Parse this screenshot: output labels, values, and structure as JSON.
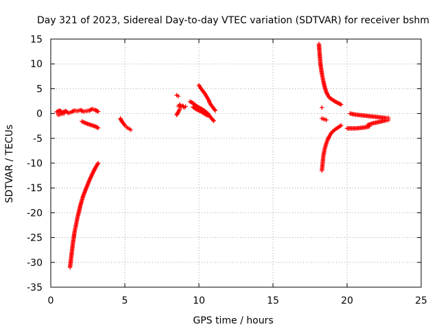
{
  "chart_data": {
    "type": "scatter",
    "title": "Day 321 of 2023, Sidereal Day-to-day VTEC variation (SDTVAR) for receiver bshm",
    "xlabel": "GPS time / hours",
    "ylabel": "SDTVAR / TECUs",
    "xlim": [
      0,
      25
    ],
    "ylim": [
      -35,
      15
    ],
    "xticks": [
      0,
      5,
      10,
      15,
      20,
      25
    ],
    "yticks": [
      -35,
      -30,
      -25,
      -20,
      -15,
      -10,
      -5,
      0,
      5,
      10,
      15
    ],
    "grid": true,
    "legend": "none",
    "marker": "plus",
    "color": "#ff0000",
    "segments": [
      {
        "x": [
          0.4,
          0.6,
          0.8,
          1.0,
          1.2,
          1.4,
          1.6,
          1.8,
          2.0,
          2.2,
          2.4,
          2.6,
          2.8,
          3.0,
          3.2
        ],
        "y": [
          0.3,
          0.6,
          0.2,
          0.5,
          0.1,
          0.3,
          0.6,
          0.5,
          0.7,
          0.4,
          0.5,
          0.6,
          0.9,
          0.7,
          0.4
        ]
      },
      {
        "x": [
          0.5,
          0.7,
          0.9
        ],
        "y": [
          -0.3,
          -0.1,
          0.0
        ]
      },
      {
        "x": [
          2.1,
          2.4,
          2.7,
          3.0,
          3.2
        ],
        "y": [
          -1.6,
          -2.0,
          -2.3,
          -2.6,
          -2.9
        ]
      },
      {
        "x": [
          1.3,
          1.4,
          1.5,
          1.6,
          1.7,
          1.8,
          1.9,
          2.0,
          2.2,
          2.4,
          2.6,
          2.8,
          3.0,
          3.2
        ],
        "y": [
          -31.0,
          -28.5,
          -26.0,
          -24.0,
          -22.5,
          -21.0,
          -19.8,
          -18.5,
          -16.5,
          -15.0,
          -13.5,
          -12.2,
          -11.0,
          -10.0
        ]
      },
      {
        "x": [
          4.7,
          4.8,
          4.9,
          5.0,
          5.1,
          5.2,
          5.3,
          5.4
        ],
        "y": [
          -1.0,
          -1.6,
          -2.0,
          -2.4,
          -2.7,
          -2.9,
          -3.1,
          -3.3
        ]
      },
      {
        "x": [
          8.5,
          8.6
        ],
        "y": [
          3.7,
          3.5
        ]
      },
      {
        "x": [
          8.6,
          8.7,
          8.8,
          8.9,
          9.0,
          9.1
        ],
        "y": [
          1.5,
          1.8,
          1.3,
          1.6,
          1.2,
          1.4
        ]
      },
      {
        "x": [
          8.5,
          8.6,
          8.7
        ],
        "y": [
          -0.3,
          0.3,
          0.8
        ]
      },
      {
        "x": [
          9.4,
          9.6,
          9.8,
          10.0,
          10.2,
          10.4,
          10.6,
          10.8,
          11.0
        ],
        "y": [
          2.4,
          2.1,
          1.6,
          1.2,
          0.9,
          0.5,
          0.0,
          -0.8,
          -1.5
        ]
      },
      {
        "x": [
          9.6,
          9.8,
          10.0,
          10.2,
          10.4,
          10.6
        ],
        "y": [
          1.3,
          0.9,
          0.6,
          0.3,
          -0.1,
          -0.4
        ]
      },
      {
        "x": [
          10.0,
          10.1,
          10.2,
          10.3,
          10.4,
          10.5,
          10.6,
          10.7
        ],
        "y": [
          5.7,
          5.2,
          4.8,
          4.4,
          4.0,
          3.5,
          3.0,
          2.5
        ]
      },
      {
        "x": [
          10.7,
          10.8,
          10.9,
          11.0,
          11.1
        ],
        "y": [
          2.3,
          1.8,
          1.4,
          1.0,
          0.6
        ]
      },
      {
        "x": [
          18.1,
          18.15,
          18.2,
          18.3,
          18.4,
          18.5,
          18.6,
          18.7,
          18.8,
          19.0,
          19.2,
          19.4,
          19.6
        ],
        "y": [
          14.0,
          12.0,
          10.0,
          8.0,
          6.5,
          5.2,
          4.3,
          3.7,
          3.2,
          2.8,
          2.4,
          2.1,
          1.8
        ]
      },
      {
        "x": [
          18.3
        ],
        "y": [
          1.2
        ]
      },
      {
        "x": [
          18.3,
          18.4,
          18.5,
          18.6
        ],
        "y": [
          -1.0,
          -1.1,
          -1.2,
          -1.3
        ]
      },
      {
        "x": [
          18.3,
          18.35,
          18.4,
          18.5,
          18.6,
          18.7,
          18.8,
          18.9,
          19.0,
          19.2,
          19.4,
          19.6
        ],
        "y": [
          -11.5,
          -10.0,
          -8.5,
          -7.0,
          -6.0,
          -5.2,
          -4.6,
          -4.1,
          -3.7,
          -3.2,
          -2.8,
          -2.4
        ]
      },
      {
        "x": [
          20.0,
          20.3,
          20.6,
          20.9,
          21.2,
          21.5
        ],
        "y": [
          -3.0,
          -3.0,
          -3.0,
          -2.9,
          -2.8,
          -2.6
        ]
      },
      {
        "x": [
          20.2,
          20.5,
          20.8,
          21.1,
          21.4,
          21.7,
          22.0,
          22.3,
          22.6,
          22.8
        ],
        "y": [
          0.0,
          -0.2,
          -0.3,
          -0.4,
          -0.5,
          -0.6,
          -0.7,
          -0.8,
          -0.9,
          -0.9
        ]
      },
      {
        "x": [
          21.4,
          21.7,
          22.0,
          22.3,
          22.6,
          22.8
        ],
        "y": [
          -2.3,
          -2.0,
          -1.8,
          -1.6,
          -1.4,
          -1.3
        ]
      }
    ]
  }
}
